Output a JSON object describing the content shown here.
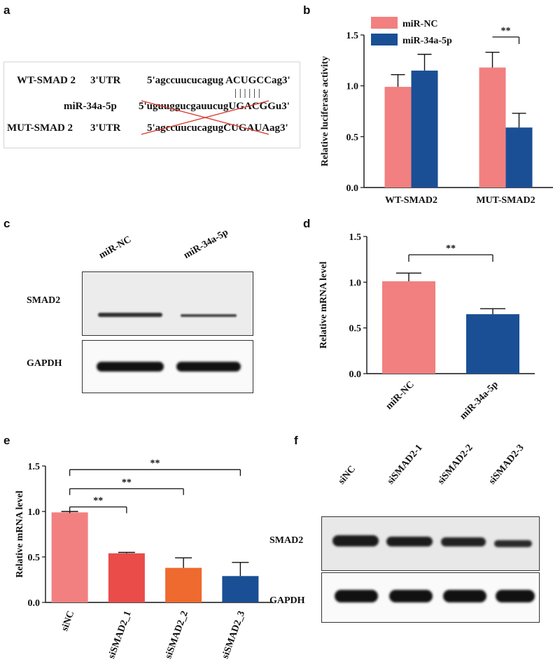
{
  "panel_labels": {
    "a": "a",
    "b": "b",
    "c": "c",
    "d": "d",
    "e": "e",
    "f": "f"
  },
  "panel_a": {
    "wt_name": "WT-SMAD 2",
    "wt_region": "3'UTR",
    "wt_seq_prefix": "5'agccuucucagug ",
    "wt_seq_site": "ACUGCC",
    "wt_seq_suffix": "ag3'",
    "pairing": "| | | | | |",
    "mir_name": "miR-34a-5p",
    "mir_seq_prefix": "5'uguuggucgauucug",
    "mir_seq_site": "UGACGG",
    "mir_seq_suffix": "u3'",
    "mut_name": "MUT-SMAD 2",
    "mut_region": "3'UTR",
    "mut_seq_prefix": "5'agccuucucagug",
    "mut_seq_site": "CUGAUA",
    "mut_seq_suffix": "ag3'",
    "cross_color": "#d9382e"
  },
  "panel_c": {
    "lanes": [
      "miR-NC",
      "miR-34a-5p"
    ],
    "rows": [
      "SMAD2",
      "GAPDH"
    ]
  },
  "panel_f": {
    "lanes": [
      "siNC",
      "siSMAD2-1",
      "siSMAD2-2",
      "siSMAD2-3"
    ],
    "rows": [
      "SMAD2",
      "GAPDH"
    ]
  },
  "chart_data": [
    {
      "id": "b",
      "type": "bar",
      "categories": [
        "WT-SMAD2",
        "MUT-SMAD2"
      ],
      "series": [
        {
          "name": "miR-NC",
          "color": "#f28080",
          "values": [
            0.99,
            1.18
          ],
          "errors": [
            0.12,
            0.15
          ]
        },
        {
          "name": "miR-34a-5p",
          "color": "#1a4f96",
          "values": [
            1.15,
            0.59
          ],
          "errors": [
            0.16,
            0.14
          ]
        }
      ],
      "ylabel": "Relative luciferase activity",
      "xlabel": "",
      "ylim": [
        0,
        1.5
      ],
      "yticks": [
        "0.0",
        "0.5",
        "1.0",
        "1.5"
      ],
      "significance": [
        {
          "label": "**",
          "category": "MUT-SMAD2"
        }
      ],
      "legend": "top-left"
    },
    {
      "id": "d",
      "type": "bar",
      "categories": [
        "miR-NC",
        "miR-34a-5p"
      ],
      "values": [
        1.01,
        0.65
      ],
      "errors": [
        0.09,
        0.06
      ],
      "colors": [
        "#f28080",
        "#1a4f96"
      ],
      "ylabel": "Relative mRNA level",
      "xlabel": "",
      "ylim": [
        0,
        1.5
      ],
      "yticks": [
        "0.0",
        "0.5",
        "1.0",
        "1.5"
      ],
      "significance": [
        {
          "label": "**",
          "from": 0,
          "to": 1
        }
      ]
    },
    {
      "id": "e",
      "type": "bar",
      "categories": [
        "siNC",
        "siSMAD2_1",
        "siSMAD2_2",
        "siSMAD2_3"
      ],
      "values": [
        0.99,
        0.54,
        0.38,
        0.29
      ],
      "errors": [
        0.01,
        0.01,
        0.11,
        0.15
      ],
      "colors": [
        "#f28080",
        "#e94c49",
        "#ee6a2e",
        "#1a4f96"
      ],
      "ylabel": "Relative mRNA level",
      "xlabel": "",
      "ylim": [
        0,
        1.5
      ],
      "yticks": [
        "0.0",
        "0.5",
        "1.0",
        "1.5"
      ],
      "significance": [
        {
          "label": "**",
          "from": 0,
          "to": 1
        },
        {
          "label": "**",
          "from": 0,
          "to": 2
        },
        {
          "label": "**",
          "from": 0,
          "to": 3
        }
      ]
    }
  ]
}
